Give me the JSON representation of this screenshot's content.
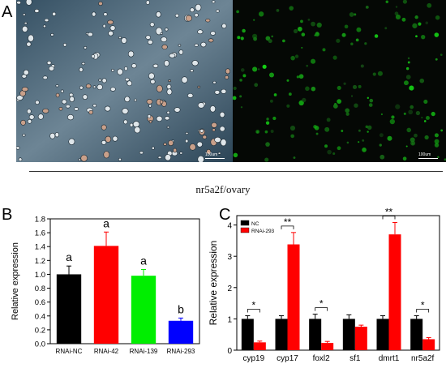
{
  "panels": {
    "a": "A",
    "b": "B",
    "c": "C"
  },
  "micrographs": {
    "left_scale": "100um",
    "right_scale": "100um"
  },
  "caption": "nr5a2f/ovary",
  "chart_data": [
    {
      "type": "bar",
      "ylabel": "Relative expression",
      "categories": [
        "RNAi-NC",
        "RNAi-42",
        "RNAi-139",
        "RNAi-293"
      ],
      "values": [
        1.0,
        1.41,
        0.98,
        0.33
      ],
      "errors": [
        0.12,
        0.2,
        0.09,
        0.04
      ],
      "letters": [
        "a",
        "a",
        "a",
        "b"
      ],
      "colors": [
        "#000000",
        "#ff0000",
        "#00ee00",
        "#0000ff"
      ],
      "ylim": [
        0,
        1.8
      ],
      "yticks": [
        "0.0",
        "0.2",
        "0.4",
        "0.6",
        "0.8",
        "1.0",
        "1.2",
        "1.4",
        "1.6",
        "1.8"
      ]
    },
    {
      "type": "bar",
      "ylabel": "Relative expression",
      "categories": [
        "cyp19",
        "cyp17",
        "foxl2",
        "sf1",
        "dmrt1",
        "nr5a2f"
      ],
      "series": [
        {
          "name": "NC",
          "color": "#000000",
          "values": [
            1.0,
            1.0,
            1.0,
            1.0,
            1.0,
            1.0
          ],
          "errors": [
            0.1,
            0.1,
            0.15,
            0.13,
            0.1,
            0.1
          ]
        },
        {
          "name": "RNAi-293",
          "color": "#ff0000",
          "values": [
            0.25,
            3.38,
            0.23,
            0.75,
            3.7,
            0.35
          ],
          "errors": [
            0.04,
            0.38,
            0.05,
            0.05,
            0.38,
            0.05
          ]
        }
      ],
      "significance": [
        "*",
        "**",
        "*",
        "",
        "**",
        "*"
      ],
      "ylim": [
        0,
        4.3
      ],
      "yticks": [
        "0",
        "1",
        "2",
        "3",
        "4"
      ],
      "legend": "top-left"
    }
  ]
}
